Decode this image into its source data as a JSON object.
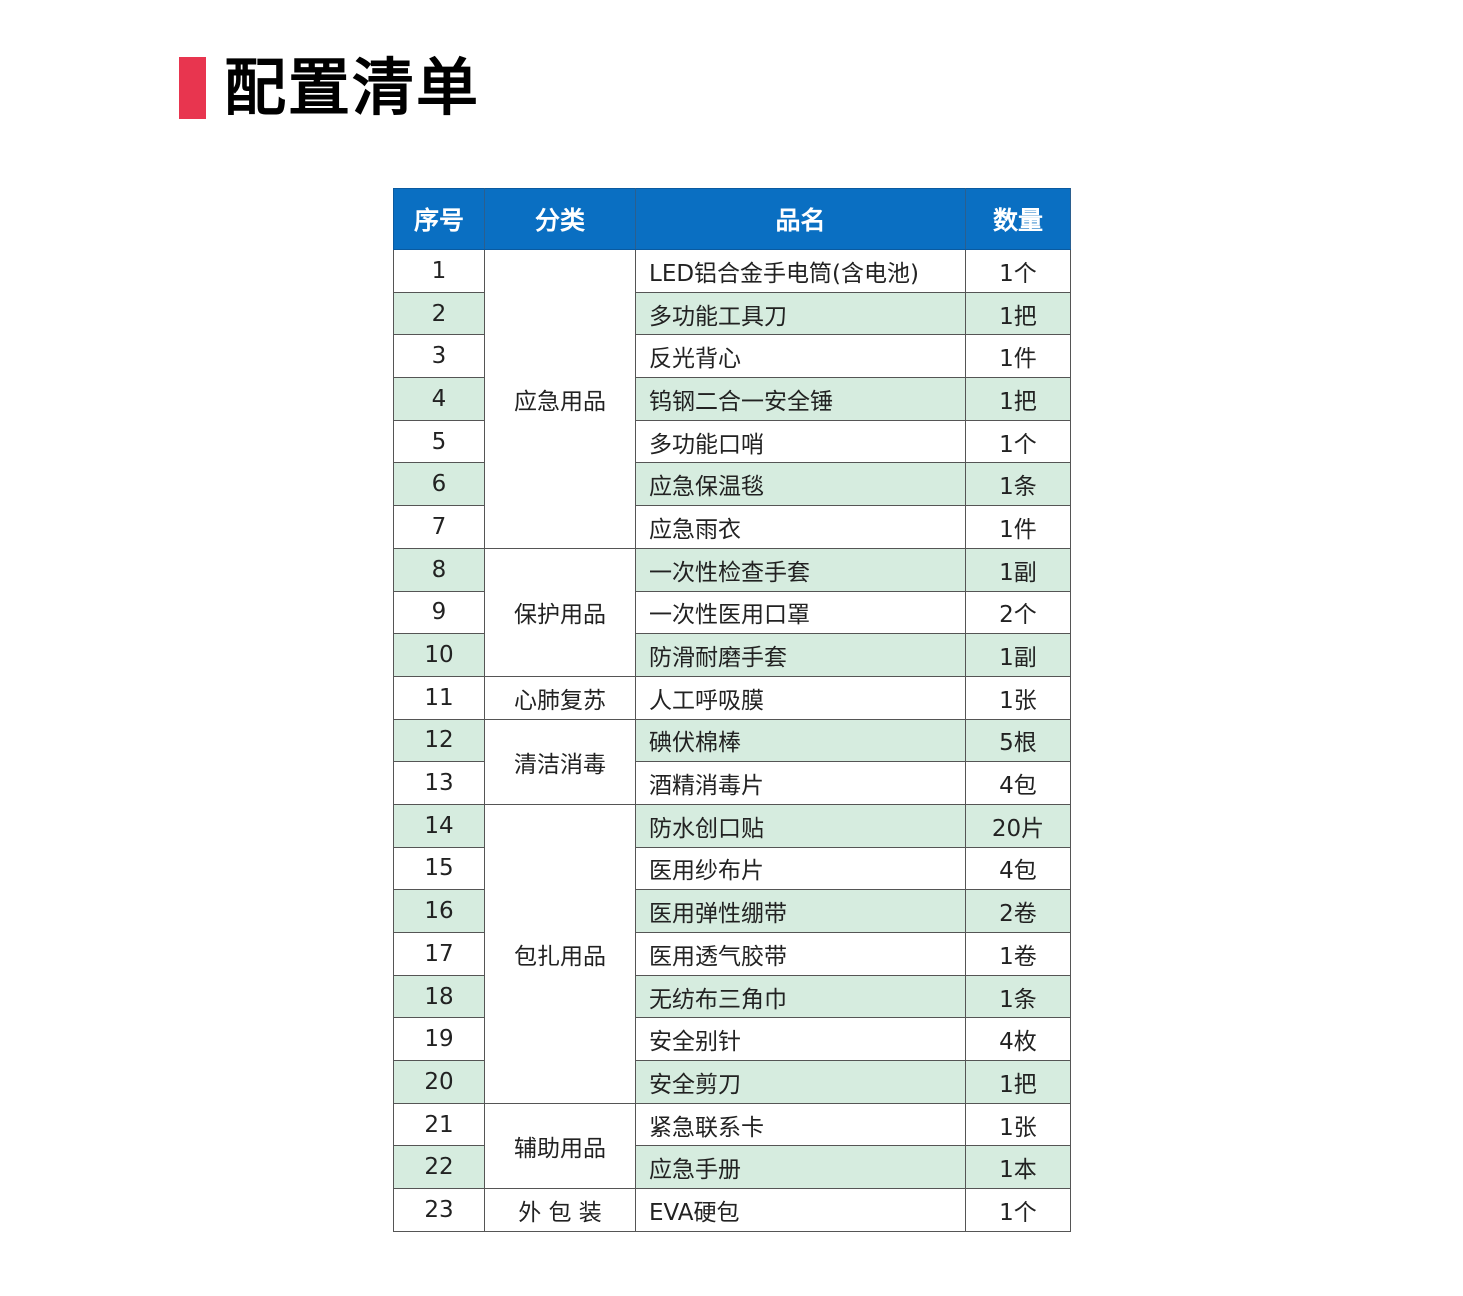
{
  "title": "配置清单",
  "colors": {
    "accent": "#e8354f",
    "header": "#0a6fc2",
    "alt_row": "#d6ecdf"
  },
  "table": {
    "headers": [
      "序号",
      "分类",
      "品名",
      "数量"
    ],
    "groups": [
      {
        "category": "应急用品",
        "items": [
          {
            "no": "1",
            "name": "LED铝合金手电筒(含电池)",
            "qty": "1个"
          },
          {
            "no": "2",
            "name": "多功能工具刀",
            "qty": "1把"
          },
          {
            "no": "3",
            "name": "反光背心",
            "qty": "1件"
          },
          {
            "no": "4",
            "name": "钨钢二合一安全锤",
            "qty": "1把"
          },
          {
            "no": "5",
            "name": "多功能口哨",
            "qty": "1个"
          },
          {
            "no": "6",
            "name": "应急保温毯",
            "qty": "1条"
          },
          {
            "no": "7",
            "name": "应急雨衣",
            "qty": "1件"
          }
        ]
      },
      {
        "category": "保护用品",
        "items": [
          {
            "no": "8",
            "name": "一次性检查手套",
            "qty": "1副"
          },
          {
            "no": "9",
            "name": "一次性医用口罩",
            "qty": "2个"
          },
          {
            "no": "10",
            "name": "防滑耐磨手套",
            "qty": "1副"
          }
        ]
      },
      {
        "category": "心肺复苏",
        "items": [
          {
            "no": "11",
            "name": "人工呼吸膜",
            "qty": "1张"
          }
        ]
      },
      {
        "category": "清洁消毒",
        "items": [
          {
            "no": "12",
            "name": "碘伏棉棒",
            "qty": "5根"
          },
          {
            "no": "13",
            "name": "酒精消毒片",
            "qty": "4包"
          }
        ]
      },
      {
        "category": "包扎用品",
        "items": [
          {
            "no": "14",
            "name": "防水创口贴",
            "qty": "20片"
          },
          {
            "no": "15",
            "name": "医用纱布片",
            "qty": "4包"
          },
          {
            "no": "16",
            "name": "医用弹性绷带",
            "qty": "2卷"
          },
          {
            "no": "17",
            "name": "医用透气胶带",
            "qty": "1卷"
          },
          {
            "no": "18",
            "name": "无纺布三角巾",
            "qty": "1条"
          },
          {
            "no": "19",
            "name": "安全别针",
            "qty": "4枚"
          },
          {
            "no": "20",
            "name": "安全剪刀",
            "qty": "1把"
          }
        ]
      },
      {
        "category": "辅助用品",
        "items": [
          {
            "no": "21",
            "name": "紧急联系卡",
            "qty": "1张"
          },
          {
            "no": "22",
            "name": "应急手册",
            "qty": "1本"
          }
        ]
      },
      {
        "category": "外 包 装",
        "items": [
          {
            "no": "23",
            "name": "EVA硬包",
            "qty": "1个"
          }
        ]
      }
    ]
  }
}
